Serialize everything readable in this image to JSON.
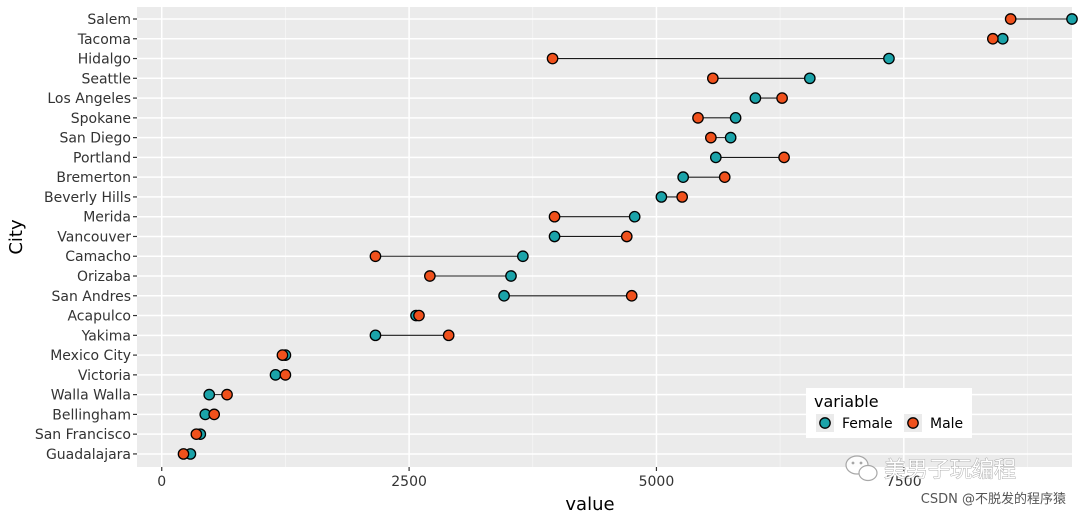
{
  "chart_data": {
    "type": "scatter",
    "subtype": "dumbbell",
    "xlabel": "value",
    "ylabel": "City",
    "xlim": [
      -250,
      9200
    ],
    "xticks": [
      0,
      2500,
      5000,
      7500
    ],
    "xtick_labels": [
      "0",
      "2500",
      "5000",
      "7500"
    ],
    "grid": true,
    "legend": {
      "title": "variable",
      "placement": "bottom-right",
      "entries": [
        {
          "name": "Female",
          "color": "#1ba3a9"
        },
        {
          "name": "Male",
          "color": "#f0511c"
        }
      ]
    },
    "categories": [
      "Salem",
      "Tacoma",
      "Hidalgo",
      "Seattle",
      "Los Angeles",
      "Spokane",
      "San Diego",
      "Portland",
      "Bremerton",
      "Beverly Hills",
      "Merida",
      "Vancouver",
      "Camacho",
      "Orizaba",
      "San Andres",
      "Acapulco",
      "Yakima",
      "Mexico City",
      "Victoria",
      "Walla Walla",
      "Bellingham",
      "San Francisco",
      "Guadalajara"
    ],
    "series": [
      {
        "name": "Female",
        "color": "#1ba3a9",
        "values": [
          9200,
          8500,
          7350,
          6550,
          6000,
          5800,
          5750,
          5600,
          5270,
          5050,
          4780,
          3970,
          3650,
          3530,
          3460,
          2570,
          2160,
          1250,
          1150,
          480,
          440,
          390,
          290
        ]
      },
      {
        "name": "Male",
        "color": "#f0511c",
        "values": [
          8580,
          8400,
          3950,
          5570,
          6270,
          5420,
          5550,
          6290,
          5690,
          5260,
          3970,
          4700,
          2160,
          2710,
          4750,
          2600,
          2900,
          1220,
          1250,
          660,
          530,
          350,
          220
        ]
      }
    ]
  },
  "watermark": {
    "logo": "wechat-logo",
    "text": "美男子玩编程",
    "credit": "CSDN @不脱发的程序猿"
  }
}
